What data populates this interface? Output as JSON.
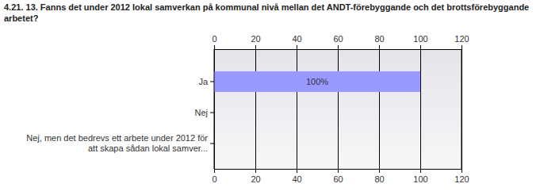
{
  "chart_data": {
    "type": "bar",
    "orientation": "horizontal",
    "title": "4.21. 13. Fanns det under 2012 lokal samverkan på kommunal nivå mellan det ANDT-förebyggande och det brottsförebyggande arbetet?",
    "categories": [
      "Ja",
      "Nej",
      "Nej, men det bedrevs ett arbete under 2012 för att skapa sådan lokal samver..."
    ],
    "values": [
      100,
      0,
      0
    ],
    "value_labels": [
      "100%",
      null,
      null
    ],
    "data_labels": true,
    "color": "#9999ff",
    "xlim": [
      0,
      120
    ],
    "xticks": [
      0,
      20,
      40,
      60,
      80,
      100,
      120
    ],
    "grid": true
  }
}
